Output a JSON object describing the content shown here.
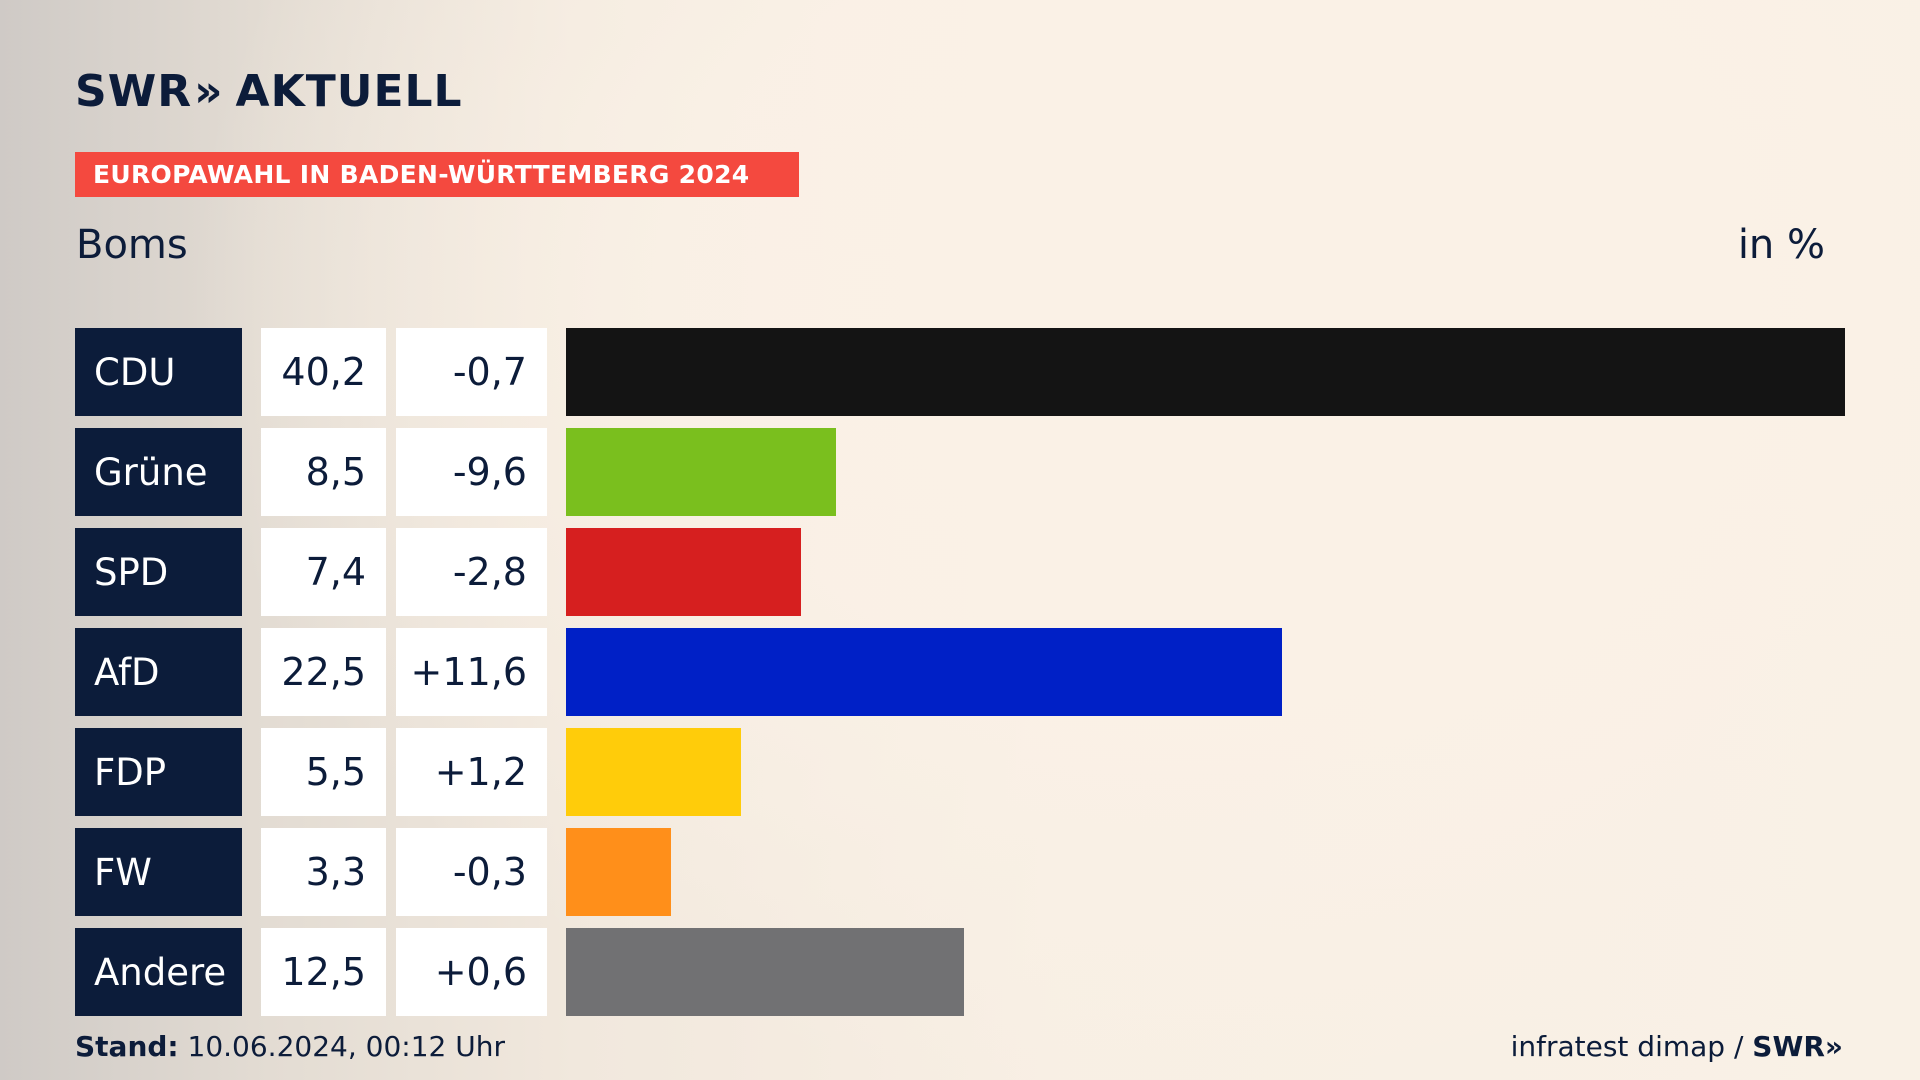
{
  "header": {
    "logo_swr": "SWR",
    "logo_arrows": "»",
    "logo_aktuell": "AKTUELL",
    "banner": "EUROPAWAHL IN BADEN-WÜRTTEMBERG 2024"
  },
  "chart_data": {
    "type": "bar",
    "title": "EUROPAWAHL IN BADEN-WÜRTTEMBERG 2024",
    "subtitle": "Boms",
    "unit": "in %",
    "categories": [
      "CDU",
      "Grüne",
      "SPD",
      "AfD",
      "FDP",
      "FW",
      "Andere"
    ],
    "values": [
      40.2,
      8.5,
      7.4,
      22.5,
      5.5,
      3.3,
      12.5
    ],
    "value_labels": [
      "40,2",
      "8,5",
      "7,4",
      "22,5",
      "5,5",
      "3,3",
      "12,5"
    ],
    "change_labels": [
      "-0,7",
      "-9,6",
      "-2,8",
      "+11,6",
      "+1,2",
      "-0,3",
      "+0,6"
    ],
    "colors": [
      "#141414",
      "#7abf1e",
      "#d61f1f",
      "#0020c6",
      "#ffcc0a",
      "#ff8f1a",
      "#717173"
    ],
    "xlim": [
      0,
      40.2
    ]
  },
  "footer": {
    "stand_label": "Stand:",
    "stand_value": " 10.06.2024, 00:12 Uhr",
    "source": "infratest dimap / ",
    "brand": "SWR»"
  }
}
